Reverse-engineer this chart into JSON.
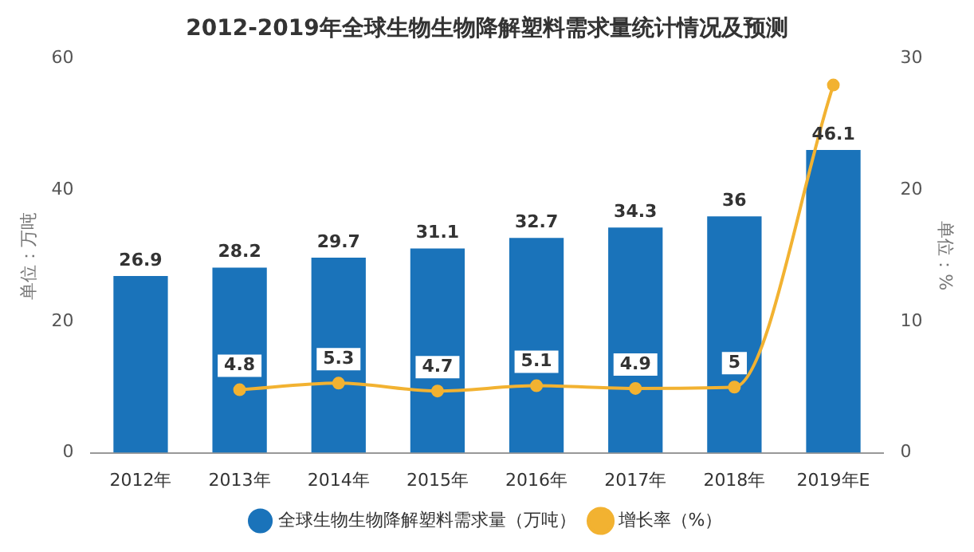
{
  "chart_data": {
    "type": "bar",
    "title": "2012-2019年全球生物生物降解塑料需求量统计情况及预测",
    "categories": [
      "2012年",
      "2013年",
      "2014年",
      "2015年",
      "2016年",
      "2017年",
      "2018年",
      "2019年E"
    ],
    "series": [
      {
        "name": "全球生物生物降解塑料需求量（万吨）",
        "color": "#1a73ba",
        "values": [
          26.9,
          28.2,
          29.7,
          31.1,
          32.7,
          34.3,
          36,
          46.1
        ],
        "value_labels": [
          "26.9",
          "28.2",
          "29.7",
          "31.1",
          "32.7",
          "34.3",
          "36",
          "46.1"
        ]
      },
      {
        "name": "增长率（%）",
        "type": "line",
        "axis": "y2",
        "color": "#f2b231",
        "values": [
          null,
          4.8,
          5.3,
          4.7,
          5.1,
          4.9,
          5,
          28
        ],
        "value_labels": [
          null,
          "4.8",
          "5.3",
          "4.7",
          "5.1",
          "4.9",
          "5",
          null
        ]
      }
    ],
    "ylim": [
      0,
      60
    ],
    "yticks": [
      0,
      20,
      40,
      60
    ],
    "y2lim": [
      0,
      30
    ],
    "y2ticks": [
      0,
      10,
      20,
      30
    ],
    "ylabel": "单位：万吨",
    "y2label": "单位：%",
    "legend": "bottom",
    "marker": "circle",
    "grid": false
  }
}
